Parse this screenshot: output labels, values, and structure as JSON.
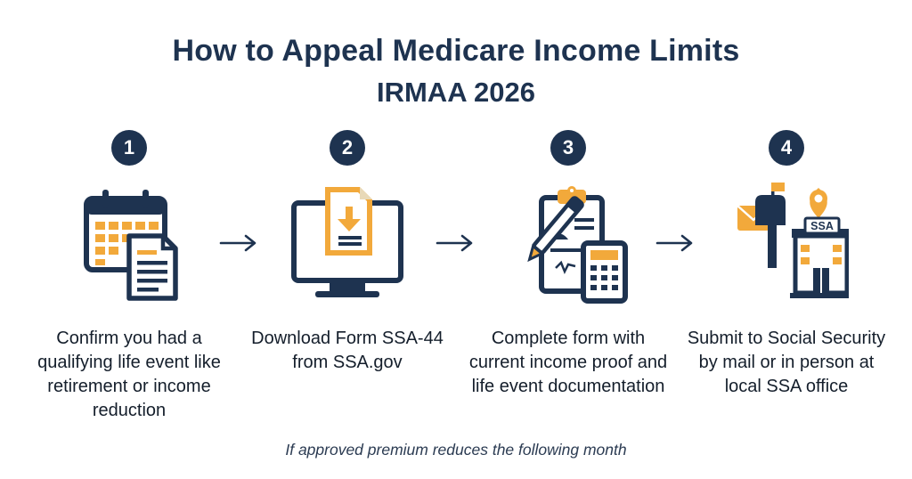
{
  "header": {
    "title": "How to Appeal Medicare Income Limits",
    "subtitle": "IRMAA 2026"
  },
  "steps": [
    {
      "number": "1",
      "icon": "calendar-document-icon",
      "description": "Confirm you had a qualifying life event like retirement or income reduction"
    },
    {
      "number": "2",
      "icon": "computer-download-icon",
      "description": "Download Form SSA-44 from SSA.gov"
    },
    {
      "number": "3",
      "icon": "clipboard-pen-calculator-icon",
      "description": "Complete form with current income proof and life event documentation"
    },
    {
      "number": "4",
      "icon": "mailbox-ssa-office-icon",
      "description": "Submit to Social Security by mail or in person at local SSA office"
    }
  ],
  "ssa_sign": "SSA",
  "footer": "If approved premium reduces the following month",
  "colors": {
    "navy": "#1e3350",
    "accent": "#f2a93b",
    "text": "#141e2b"
  }
}
